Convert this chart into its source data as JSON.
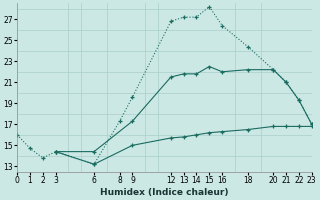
{
  "xlabel": "Humidex (Indice chaleur)",
  "bg_color": "#cce8e5",
  "grid_color": "#aacfcc",
  "line_color": "#1a6b60",
  "lines": [
    {
      "x": [
        0,
        1,
        2,
        3,
        6,
        8,
        9,
        12,
        13,
        14,
        15,
        16,
        18,
        20,
        21,
        22,
        23
      ],
      "y": [
        16.0,
        14.7,
        13.8,
        14.4,
        13.2,
        17.3,
        19.6,
        26.8,
        27.2,
        27.2,
        28.2,
        26.4,
        24.4,
        22.2,
        21.0,
        19.3,
        17.0
      ],
      "linestyle": ":"
    },
    {
      "x": [
        3,
        6,
        9,
        12,
        13,
        14,
        15,
        16,
        18,
        20,
        21,
        22,
        23
      ],
      "y": [
        14.4,
        14.4,
        17.3,
        21.5,
        21.8,
        21.8,
        22.5,
        22.0,
        22.2,
        22.2,
        21.0,
        19.3,
        17.0
      ],
      "linestyle": "-"
    },
    {
      "x": [
        3,
        6,
        9,
        12,
        13,
        14,
        15,
        16,
        18,
        20,
        21,
        22,
        23
      ],
      "y": [
        14.4,
        13.2,
        15.0,
        15.7,
        15.8,
        16.0,
        16.2,
        16.3,
        16.5,
        16.8,
        16.8,
        16.8,
        16.8
      ],
      "linestyle": "-"
    }
  ],
  "xlim": [
    0,
    23
  ],
  "ylim": [
    12.5,
    28.5
  ],
  "xticks": [
    0,
    1,
    2,
    3,
    6,
    8,
    9,
    12,
    13,
    14,
    15,
    16,
    18,
    20,
    21,
    22,
    23
  ],
  "yticks": [
    13,
    15,
    17,
    19,
    21,
    23,
    25,
    27
  ],
  "xminor": [
    0,
    1,
    2,
    3,
    4,
    5,
    6,
    7,
    8,
    9,
    10,
    11,
    12,
    13,
    14,
    15,
    16,
    17,
    18,
    19,
    20,
    21,
    22,
    23
  ],
  "yminor": [
    13,
    14,
    15,
    16,
    17,
    18,
    19,
    20,
    21,
    22,
    23,
    24,
    25,
    26,
    27,
    28
  ]
}
